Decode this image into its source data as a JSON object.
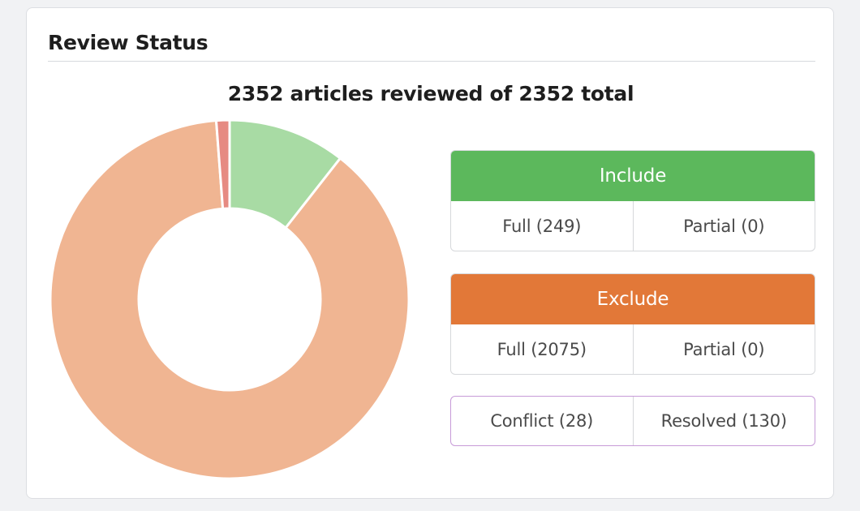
{
  "card": {
    "title": "Review Status"
  },
  "summary": {
    "text": "2352 articles reviewed of 2352 total"
  },
  "chart_data": {
    "type": "pie",
    "donut": true,
    "categories": [
      "Include",
      "Exclude",
      "Conflict"
    ],
    "values": [
      249,
      2075,
      28
    ],
    "colors": [
      "#a8dba4",
      "#f0b592",
      "#e68a82"
    ],
    "title": "",
    "legend": "none"
  },
  "include": {
    "label": "Include",
    "full": "Full (249)",
    "partial": "Partial (0)",
    "color": "#5cb85c"
  },
  "exclude": {
    "label": "Exclude",
    "full": "Full (2075)",
    "partial": "Partial (0)",
    "color": "#e27838"
  },
  "status": {
    "conflict": "Conflict (28)",
    "resolved": "Resolved (130)",
    "border_color": "#c79bd8"
  }
}
